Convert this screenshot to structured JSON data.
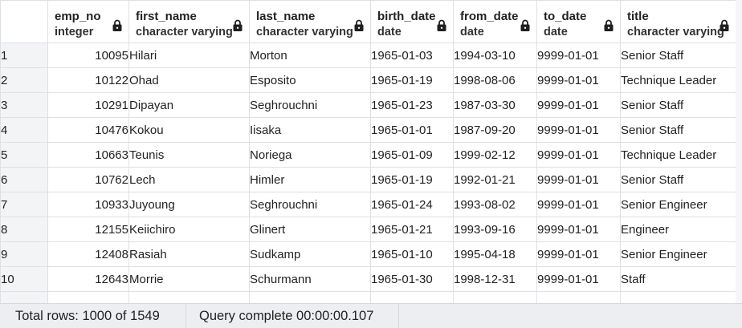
{
  "columns": [
    {
      "name": "emp_no",
      "type": "integer"
    },
    {
      "name": "first_name",
      "type": "character varying"
    },
    {
      "name": "last_name",
      "type": "character varying"
    },
    {
      "name": "birth_date",
      "type": "date"
    },
    {
      "name": "from_date",
      "type": "date"
    },
    {
      "name": "to_date",
      "type": "date"
    },
    {
      "name": "title",
      "type": "character varying"
    }
  ],
  "rows": [
    {
      "n": "1",
      "emp_no": "10095",
      "first_name": "Hilari",
      "last_name": "Morton",
      "birth_date": "1965-01-03",
      "from_date": "1994-03-10",
      "to_date": "9999-01-01",
      "title": "Senior Staff"
    },
    {
      "n": "2",
      "emp_no": "10122",
      "first_name": "Ohad",
      "last_name": "Esposito",
      "birth_date": "1965-01-19",
      "from_date": "1998-08-06",
      "to_date": "9999-01-01",
      "title": "Technique Leader"
    },
    {
      "n": "3",
      "emp_no": "10291",
      "first_name": "Dipayan",
      "last_name": "Seghrouchni",
      "birth_date": "1965-01-23",
      "from_date": "1987-03-30",
      "to_date": "9999-01-01",
      "title": "Senior Staff"
    },
    {
      "n": "4",
      "emp_no": "10476",
      "first_name": "Kokou",
      "last_name": "Iisaka",
      "birth_date": "1965-01-01",
      "from_date": "1987-09-20",
      "to_date": "9999-01-01",
      "title": "Senior Staff"
    },
    {
      "n": "5",
      "emp_no": "10663",
      "first_name": "Teunis",
      "last_name": "Noriega",
      "birth_date": "1965-01-09",
      "from_date": "1999-02-12",
      "to_date": "9999-01-01",
      "title": "Technique Leader"
    },
    {
      "n": "6",
      "emp_no": "10762",
      "first_name": "Lech",
      "last_name": "Himler",
      "birth_date": "1965-01-19",
      "from_date": "1992-01-21",
      "to_date": "9999-01-01",
      "title": "Senior Staff"
    },
    {
      "n": "7",
      "emp_no": "10933",
      "first_name": "Juyoung",
      "last_name": "Seghrouchni",
      "birth_date": "1965-01-24",
      "from_date": "1993-08-02",
      "to_date": "9999-01-01",
      "title": "Senior Engineer"
    },
    {
      "n": "8",
      "emp_no": "12155",
      "first_name": "Keiichiro",
      "last_name": "Glinert",
      "birth_date": "1965-01-21",
      "from_date": "1993-09-16",
      "to_date": "9999-01-01",
      "title": "Engineer"
    },
    {
      "n": "9",
      "emp_no": "12408",
      "first_name": "Rasiah",
      "last_name": "Sudkamp",
      "birth_date": "1965-01-10",
      "from_date": "1995-04-18",
      "to_date": "9999-01-01",
      "title": "Senior Engineer"
    },
    {
      "n": "10",
      "emp_no": "12643",
      "first_name": "Morrie",
      "last_name": "Schurmann",
      "birth_date": "1965-01-30",
      "from_date": "1998-12-31",
      "to_date": "9999-01-01",
      "title": "Staff"
    }
  ],
  "status": {
    "rows_text": "Total rows: 1000 of 1549",
    "query_text": "Query complete 00:00:00.107"
  },
  "icons": {
    "column_lock": "lock-icon"
  }
}
